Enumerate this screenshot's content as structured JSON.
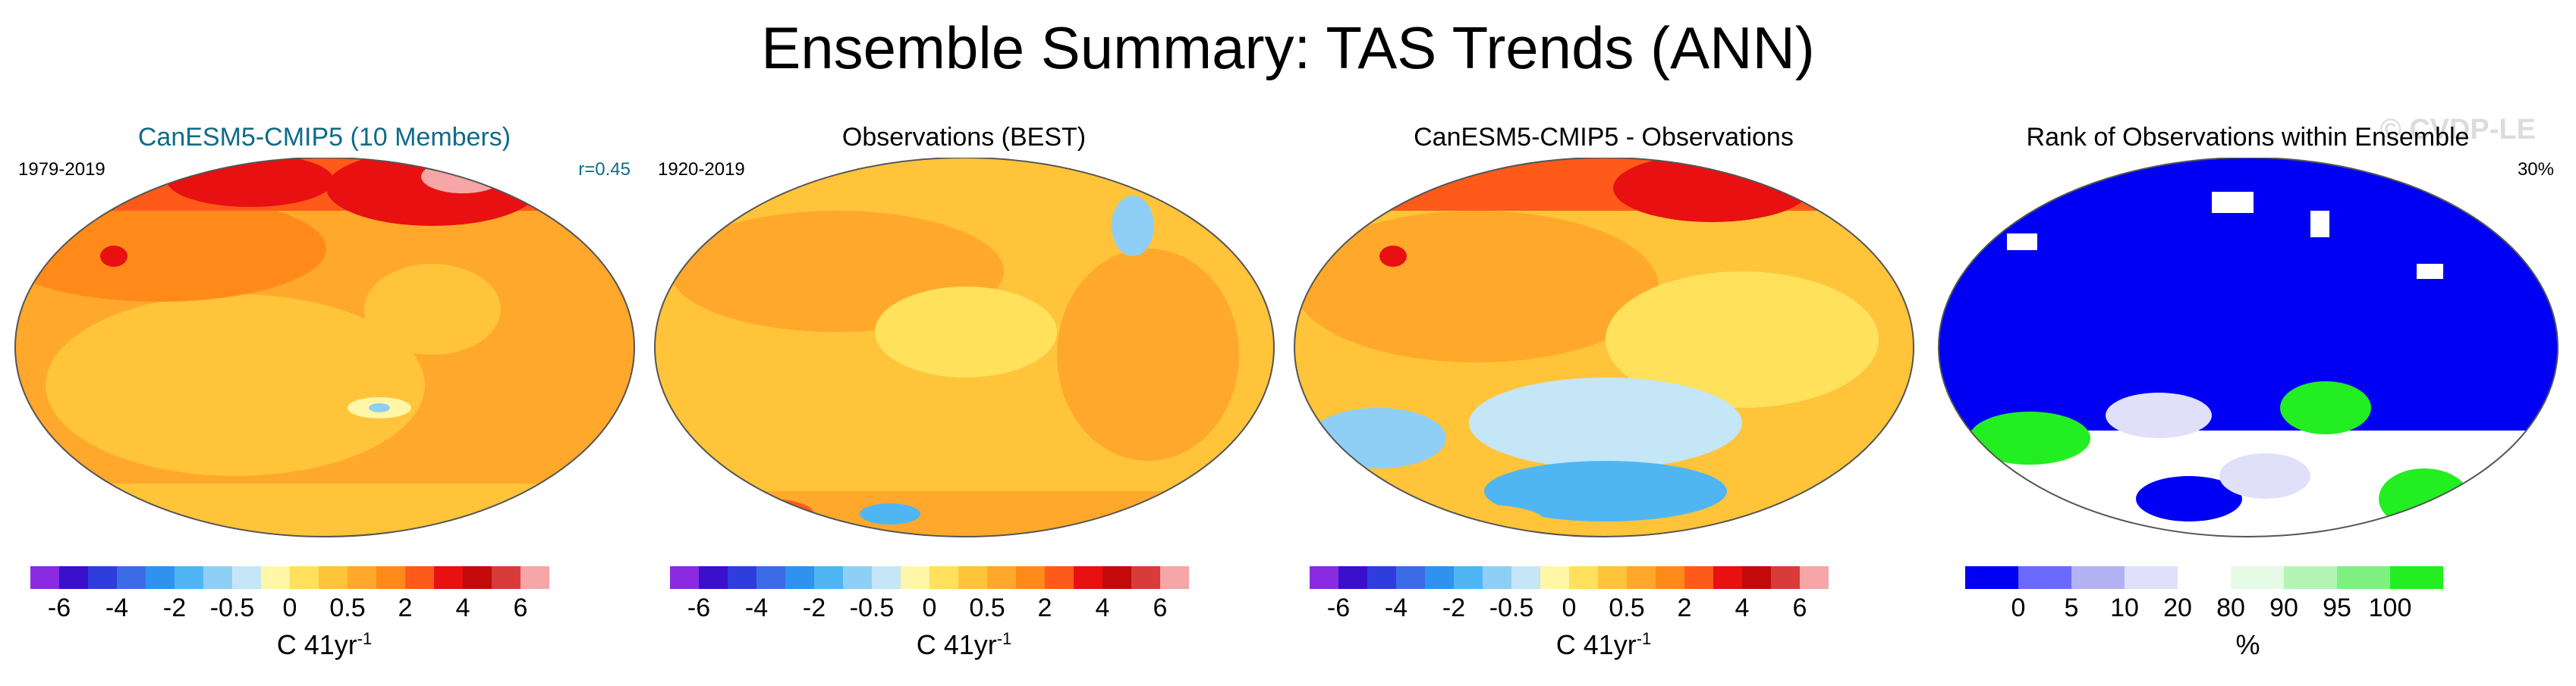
{
  "title": "Ensemble Summary: TAS Trends (ANN)",
  "watermark": "© CVDP-LE",
  "colors": {
    "temp": [
      "#8a2be2",
      "#3a10cc",
      "#2f3ddc",
      "#3c6be8",
      "#2f92ee",
      "#4fb6f3",
      "#8fcff5",
      "#c4e6f7",
      "#fff6a8",
      "#ffe15c",
      "#ffc43a",
      "#ffa82b",
      "#ff8a1a",
      "#ff5a1a",
      "#e81010",
      "#c40a0a",
      "#d93b3b",
      "#f6a6a6"
    ],
    "rank": [
      "#0000f4",
      "#6a6aff",
      "#b2b2f2",
      "#e0e0fb",
      "#ffffff",
      "#e6fbe6",
      "#b4f4b4",
      "#7ff07f",
      "#22ee22"
    ]
  },
  "chart_data": [
    {
      "type": "heatmap",
      "title": "CanESM5-CMIP5 (10 Members)",
      "left_label": "1979-2019",
      "right_label": "r=0.45",
      "colorbar": {
        "ticks": [
          "-6",
          "-4",
          "-2",
          "-0.5",
          "0",
          "0.5",
          "2",
          "4",
          "6"
        ],
        "unit": "C 41yr",
        "unit_exp": "-1"
      }
    },
    {
      "type": "heatmap",
      "title": "Observations (BEST)",
      "left_label": "1920-2019",
      "right_label": "",
      "colorbar": {
        "ticks": [
          "-6",
          "-4",
          "-2",
          "-0.5",
          "0",
          "0.5",
          "2",
          "4",
          "6"
        ],
        "unit": "C 41yr",
        "unit_exp": "-1"
      }
    },
    {
      "type": "heatmap",
      "title": "CanESM5-CMIP5 - Observations",
      "left_label": "",
      "right_label": "",
      "colorbar": {
        "ticks": [
          "-6",
          "-4",
          "-2",
          "-0.5",
          "0",
          "0.5",
          "2",
          "4",
          "6"
        ],
        "unit": "C 41yr",
        "unit_exp": "-1"
      }
    },
    {
      "type": "heatmap",
      "title": "Rank of Observations within Ensemble",
      "left_label": "",
      "right_label": "30%",
      "colorbar": {
        "ticks": [
          "0",
          "5",
          "10",
          "20",
          "80",
          "90",
          "95",
          "100"
        ],
        "unit": "%"
      }
    }
  ]
}
